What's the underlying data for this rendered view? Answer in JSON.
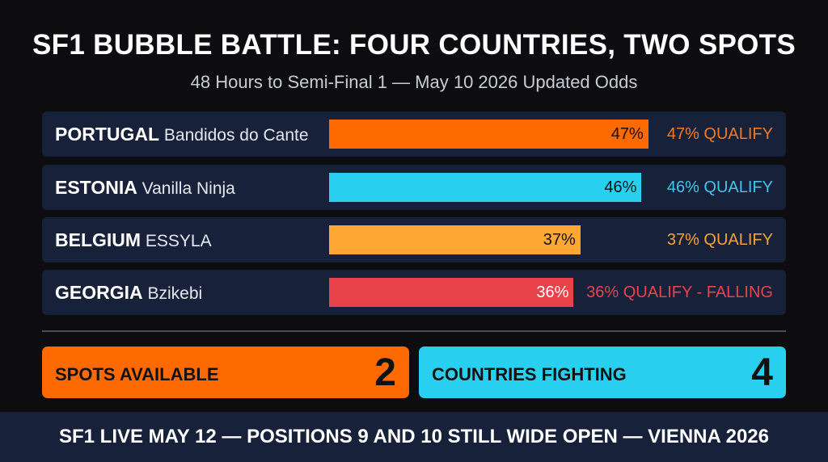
{
  "header": {
    "title": "SF1 BUBBLE BATTLE: FOUR COUNTRIES, TWO SPOTS",
    "subtitle": "48 Hours to Semi-Final 1 — May 10 2026 Updated Odds"
  },
  "chart_data": {
    "type": "bar",
    "orientation": "horizontal",
    "title": "SF1 BUBBLE BATTLE: FOUR COUNTRIES, TWO SPOTS",
    "subtitle": "48 Hours to Semi-Final 1 — May 10 2026 Updated Odds",
    "value_unit": "%",
    "xlim": [
      0,
      100
    ],
    "grid": false,
    "categories": [
      "PORTUGAL",
      "ESTONIA",
      "BELGIUM",
      "GEORGIA"
    ],
    "values": [
      47,
      46,
      37,
      36
    ],
    "rows": [
      {
        "country": "PORTUGAL",
        "artist": "Bandidos do Cante",
        "value": 47,
        "value_label": "47%",
        "status": "47% QUALIFY",
        "color": "#ff6a00",
        "status_color": "#f07a26"
      },
      {
        "country": "ESTONIA",
        "artist": "Vanilla Ninja",
        "value": 46,
        "value_label": "46%",
        "status": "46% QUALIFY",
        "color": "#28cfee",
        "status_color": "#3fc6ea"
      },
      {
        "country": "BELGIUM",
        "artist": "ESSYLA",
        "value": 37,
        "value_label": "37%",
        "status": "37% QUALIFY",
        "color": "#ffa733",
        "status_color": "#f7a13b"
      },
      {
        "country": "GEORGIA",
        "artist": "Bzikebi",
        "value": 36,
        "value_label": "36%",
        "status": "36% QUALIFY - FALLING",
        "color": "#e8414a",
        "status_color": "#e8444c"
      }
    ]
  },
  "summary": {
    "spots_label": "SPOTS AVAILABLE",
    "spots_value": "2",
    "spots_color": "#ff6a00",
    "countries_label": "COUNTRIES FIGHTING",
    "countries_value": "4",
    "countries_color": "#28cfee"
  },
  "footer": {
    "text": "SF1 LIVE MAY 12 — POSITIONS 9 AND 10 STILL WIDE OPEN — VIENNA 2026"
  }
}
